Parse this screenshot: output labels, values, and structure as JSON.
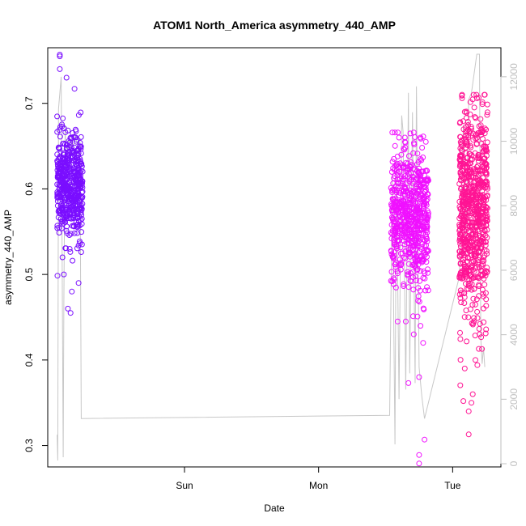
{
  "chart_data": {
    "type": "scatter",
    "title": "ATOM1 North_America asymmetry_440_AMP",
    "xlabel": "Date",
    "ylabel": "asymmetry_440_AMP",
    "xlim": [
      -1.02,
      2.36
    ],
    "ylim": [
      0.275,
      0.765
    ],
    "y2lim": [
      -100,
      12900
    ],
    "x_ticks": [
      {
        "value": 0,
        "label": "Sun"
      },
      {
        "value": 1,
        "label": "Mon"
      },
      {
        "value": 2,
        "label": "Tue"
      }
    ],
    "y_ticks": [
      0.3,
      0.4,
      0.5,
      0.6,
      0.7
    ],
    "y2_ticks": [
      0,
      2000,
      4000,
      6000,
      8000,
      10000,
      12000
    ],
    "series": [
      {
        "color": "#7a0eff",
        "marker": "open-circle",
        "clusters": [
          {
            "x_range": [
              -0.95,
              -0.76
            ],
            "y_center": 0.603,
            "y_spread": 0.03,
            "count": 520,
            "y_min": 0.455,
            "y_max": 0.757
          }
        ],
        "points": [
          [
            -0.93,
            0.757
          ],
          [
            -0.93,
            0.755
          ],
          [
            -0.93,
            0.74
          ],
          [
            -0.88,
            0.73
          ],
          [
            -0.82,
            0.717
          ],
          [
            -0.87,
            0.46
          ],
          [
            -0.85,
            0.455
          ],
          [
            -0.84,
            0.48
          ],
          [
            -0.79,
            0.49
          ],
          [
            -0.9,
            0.5
          ],
          [
            -0.91,
            0.52
          ],
          [
            -0.78,
            0.635
          ]
        ]
      },
      {
        "color": "#f010ff",
        "marker": "open-circle",
        "clusters": [
          {
            "x_range": [
              1.54,
              1.82
            ],
            "y_center": 0.565,
            "y_spread": 0.04,
            "count": 650,
            "y_min": 0.28,
            "y_max": 0.666
          }
        ],
        "points": [
          [
            1.55,
            0.666
          ],
          [
            1.6,
            0.66
          ],
          [
            1.76,
            0.66
          ],
          [
            1.8,
            0.655
          ],
          [
            1.67,
            0.373
          ],
          [
            1.75,
            0.38
          ],
          [
            1.79,
            0.307
          ],
          [
            1.75,
            0.289
          ],
          [
            1.75,
            0.279
          ],
          [
            1.59,
            0.445
          ],
          [
            1.65,
            0.445
          ],
          [
            1.71,
            0.43
          ],
          [
            1.76,
            0.44
          ],
          [
            1.78,
            0.42
          ]
        ]
      },
      {
        "color": "#ff1494",
        "marker": "open-circle",
        "clusters": [
          {
            "x_range": [
              2.05,
              2.26
            ],
            "y_center": 0.57,
            "y_spread": 0.06,
            "count": 750,
            "y_min": 0.313,
            "y_max": 0.71
          }
        ],
        "points": [
          [
            2.07,
            0.71
          ],
          [
            2.07,
            0.706
          ],
          [
            2.09,
            0.69
          ],
          [
            2.2,
            0.666
          ],
          [
            2.24,
            0.665
          ],
          [
            2.12,
            0.313
          ],
          [
            2.12,
            0.34
          ],
          [
            2.08,
            0.352
          ],
          [
            2.14,
            0.35
          ],
          [
            2.09,
            0.39
          ],
          [
            2.15,
            0.36
          ],
          [
            2.17,
            0.4
          ]
        ]
      }
    ],
    "line_series": {
      "axis": "right",
      "color": "#c8c8c8",
      "points": [
        [
          -0.95,
          900
        ],
        [
          -0.945,
          100
        ],
        [
          -0.94,
          11000
        ],
        [
          -0.92,
          12000
        ],
        [
          -0.905,
          200
        ],
        [
          -0.9,
          5000
        ],
        [
          -0.89,
          10500
        ],
        [
          -0.88,
          9000
        ],
        [
          -0.87,
          9800
        ],
        [
          -0.86,
          10200
        ],
        [
          -0.85,
          9600
        ],
        [
          -0.84,
          10000
        ],
        [
          -0.83,
          9700
        ],
        [
          -0.82,
          10300
        ],
        [
          -0.8,
          9900
        ],
        [
          -0.78,
          10100
        ],
        [
          -0.77,
          1400
        ],
        [
          1.53,
          1500
        ],
        [
          1.55,
          9000
        ],
        [
          1.57,
          600
        ],
        [
          1.58,
          9500
        ],
        [
          1.6,
          2000
        ],
        [
          1.62,
          10800
        ],
        [
          1.63,
          10300
        ],
        [
          1.65,
          2300
        ],
        [
          1.67,
          11500
        ],
        [
          1.68,
          2800
        ],
        [
          1.7,
          10900
        ],
        [
          1.72,
          2500
        ],
        [
          1.73,
          11700
        ],
        [
          1.75,
          3000
        ],
        [
          1.77,
          2100
        ],
        [
          1.79,
          1400
        ],
        [
          2.05,
          5800
        ],
        [
          2.08,
          10500
        ],
        [
          2.1,
          7000
        ],
        [
          2.12,
          11300
        ],
        [
          2.14,
          11500
        ],
        [
          2.16,
          12100
        ],
        [
          2.18,
          12700
        ],
        [
          2.2,
          12700
        ],
        [
          2.21,
          3900
        ],
        [
          2.22,
          3100
        ],
        [
          2.23,
          3600
        ],
        [
          2.24,
          3000
        ]
      ]
    }
  }
}
